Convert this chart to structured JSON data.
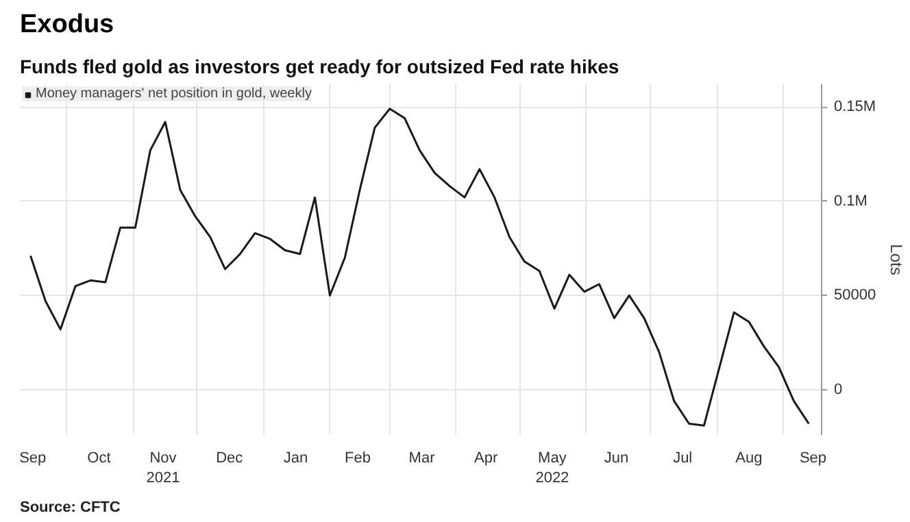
{
  "chart_data": {
    "type": "line",
    "title": "Exodus",
    "subtitle": "Funds fled gold as investors get ready for outsized Fed rate hikes",
    "ylabel": "Lots",
    "x": [
      "2021-09-14",
      "2021-09-21",
      "2021-09-28",
      "2021-10-05",
      "2021-10-12",
      "2021-10-19",
      "2021-10-26",
      "2021-11-02",
      "2021-11-09",
      "2021-11-16",
      "2021-11-23",
      "2021-11-30",
      "2021-12-07",
      "2021-12-14",
      "2021-12-21",
      "2021-12-28",
      "2022-01-04",
      "2022-01-11",
      "2022-01-18",
      "2022-01-25",
      "2022-02-01",
      "2022-02-08",
      "2022-02-15",
      "2022-02-22",
      "2022-03-01",
      "2022-03-08",
      "2022-03-15",
      "2022-03-22",
      "2022-03-29",
      "2022-04-05",
      "2022-04-12",
      "2022-04-19",
      "2022-04-26",
      "2022-05-03",
      "2022-05-10",
      "2022-05-17",
      "2022-05-24",
      "2022-05-31",
      "2022-06-07",
      "2022-06-14",
      "2022-06-21",
      "2022-06-28",
      "2022-07-05",
      "2022-07-12",
      "2022-07-19",
      "2022-07-26",
      "2022-08-02",
      "2022-08-09",
      "2022-08-16",
      "2022-08-23",
      "2022-08-30",
      "2022-09-06",
      "2022-09-13"
    ],
    "series": [
      {
        "name": "Money managers' net position in gold, weekly",
        "color": "#1a1a1a",
        "values": [
          71000,
          47000,
          32000,
          55000,
          58000,
          57000,
          86000,
          86000,
          127000,
          142000,
          106000,
          92000,
          81000,
          64000,
          72000,
          83000,
          80000,
          74000,
          72000,
          102000,
          50000,
          70000,
          106000,
          139000,
          149000,
          144000,
          127000,
          115000,
          108000,
          102000,
          117000,
          102000,
          81000,
          68000,
          63000,
          43000,
          61000,
          52000,
          56000,
          38000,
          50000,
          38000,
          20000,
          -6000,
          -18000,
          -19000,
          11000,
          41000,
          36000,
          23000,
          12000,
          -6000,
          -18000
        ]
      }
    ],
    "xlim": [
      "2021-09-09",
      "2022-09-19"
    ],
    "xticks": [
      {
        "value": "2021-09-15",
        "label": "Sep"
      },
      {
        "value": "2021-10-01",
        "label": null
      },
      {
        "value": "2021-10-16",
        "label": "Oct"
      },
      {
        "value": "2021-11-01",
        "label": null
      },
      {
        "value": "2021-11-15",
        "label": "Nov\n2021"
      },
      {
        "value": "2021-12-01",
        "label": null
      },
      {
        "value": "2021-12-16",
        "label": "Dec"
      },
      {
        "value": "2022-01-01",
        "label": null
      },
      {
        "value": "2022-01-16",
        "label": "Jan"
      },
      {
        "value": "2022-02-01",
        "label": null
      },
      {
        "value": "2022-02-14",
        "label": "Feb"
      },
      {
        "value": "2022-03-01",
        "label": null
      },
      {
        "value": "2022-03-16",
        "label": "Mar"
      },
      {
        "value": "2022-04-01",
        "label": null
      },
      {
        "value": "2022-04-15",
        "label": "Apr"
      },
      {
        "value": "2022-05-01",
        "label": null
      },
      {
        "value": "2022-05-16",
        "label": "May\n2022"
      },
      {
        "value": "2022-06-01",
        "label": null
      },
      {
        "value": "2022-06-15",
        "label": "Jun"
      },
      {
        "value": "2022-07-01",
        "label": null
      },
      {
        "value": "2022-07-16",
        "label": "Jul"
      },
      {
        "value": "2022-08-01",
        "label": null
      },
      {
        "value": "2022-08-16",
        "label": "Aug"
      },
      {
        "value": "2022-09-01",
        "label": null
      },
      {
        "value": "2022-09-15",
        "label": "Sep"
      }
    ],
    "ylim": [
      -24000,
      162000
    ],
    "yticks": [
      0,
      50000,
      {
        "value": 100000,
        "label": "0.1M"
      },
      {
        "value": 150000,
        "label": "0.15M"
      }
    ],
    "grid": true,
    "legend": "top left",
    "marker": "none",
    "line_style": "solid",
    "annotations": [
      "Source: CFTC"
    ]
  }
}
